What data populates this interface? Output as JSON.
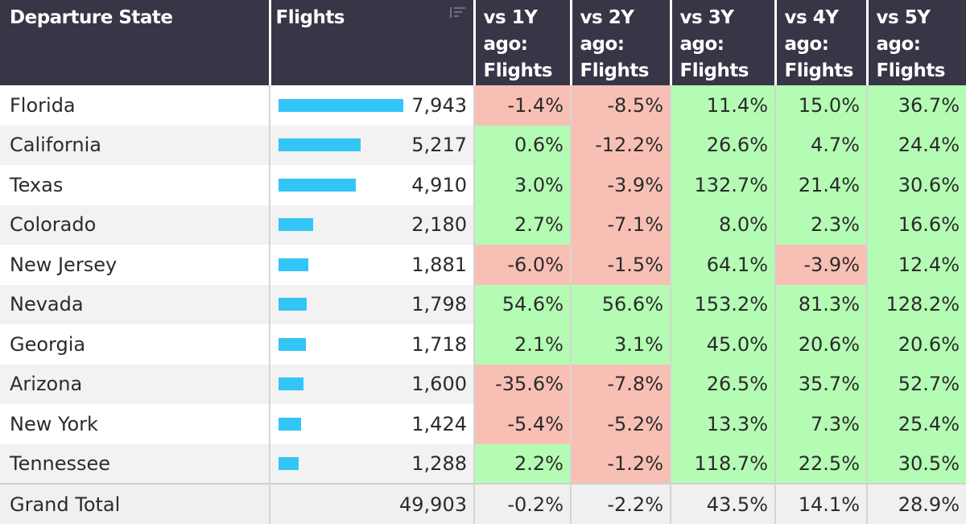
{
  "headers": {
    "state": "Departure State",
    "flights": "Flights",
    "vs1y": "vs 1Y ago: Flights",
    "vs2y": "vs 2Y ago: Flights",
    "vs3y": "vs 3Y ago: Flights",
    "vs4y": "vs 4Y ago: Flights",
    "vs5y": "vs 5Y ago: Flights"
  },
  "sort_icon": "sort-descending-icon",
  "colors": {
    "header_bg": "#363647",
    "bar": "#33c5f6",
    "positive": "#b4fcb4",
    "negative": "#f8c0b4"
  },
  "bar_max": 7943,
  "rows": [
    {
      "state": "Florida",
      "flights": "7,943",
      "flights_value": 7943,
      "vs1y": "-1.4%",
      "vs2y": "-8.5%",
      "vs3y": "11.4%",
      "vs4y": "15.0%",
      "vs5y": "36.7%"
    },
    {
      "state": "California",
      "flights": "5,217",
      "flights_value": 5217,
      "vs1y": "0.6%",
      "vs2y": "-12.2%",
      "vs3y": "26.6%",
      "vs4y": "4.7%",
      "vs5y": "24.4%"
    },
    {
      "state": "Texas",
      "flights": "4,910",
      "flights_value": 4910,
      "vs1y": "3.0%",
      "vs2y": "-3.9%",
      "vs3y": "132.7%",
      "vs4y": "21.4%",
      "vs5y": "30.6%"
    },
    {
      "state": "Colorado",
      "flights": "2,180",
      "flights_value": 2180,
      "vs1y": "2.7%",
      "vs2y": "-7.1%",
      "vs3y": "8.0%",
      "vs4y": "2.3%",
      "vs5y": "16.6%"
    },
    {
      "state": "New Jersey",
      "flights": "1,881",
      "flights_value": 1881,
      "vs1y": "-6.0%",
      "vs2y": "-1.5%",
      "vs3y": "64.1%",
      "vs4y": "-3.9%",
      "vs5y": "12.4%"
    },
    {
      "state": "Nevada",
      "flights": "1,798",
      "flights_value": 1798,
      "vs1y": "54.6%",
      "vs2y": "56.6%",
      "vs3y": "153.2%",
      "vs4y": "81.3%",
      "vs5y": "128.2%"
    },
    {
      "state": "Georgia",
      "flights": "1,718",
      "flights_value": 1718,
      "vs1y": "2.1%",
      "vs2y": "3.1%",
      "vs3y": "45.0%",
      "vs4y": "20.6%",
      "vs5y": "20.6%"
    },
    {
      "state": "Arizona",
      "flights": "1,600",
      "flights_value": 1600,
      "vs1y": "-35.6%",
      "vs2y": "-7.8%",
      "vs3y": "26.5%",
      "vs4y": "35.7%",
      "vs5y": "52.7%"
    },
    {
      "state": "New York",
      "flights": "1,424",
      "flights_value": 1424,
      "vs1y": "-5.4%",
      "vs2y": "-5.2%",
      "vs3y": "13.3%",
      "vs4y": "7.3%",
      "vs5y": "25.4%"
    },
    {
      "state": "Tennessee",
      "flights": "1,288",
      "flights_value": 1288,
      "vs1y": "2.2%",
      "vs2y": "-1.2%",
      "vs3y": "118.7%",
      "vs4y": "22.5%",
      "vs5y": "30.5%"
    }
  ],
  "total": {
    "label": "Grand Total",
    "flights": "49,903",
    "vs1y": "-0.2%",
    "vs2y": "-2.2%",
    "vs3y": "43.5%",
    "vs4y": "14.1%",
    "vs5y": "28.9%"
  }
}
